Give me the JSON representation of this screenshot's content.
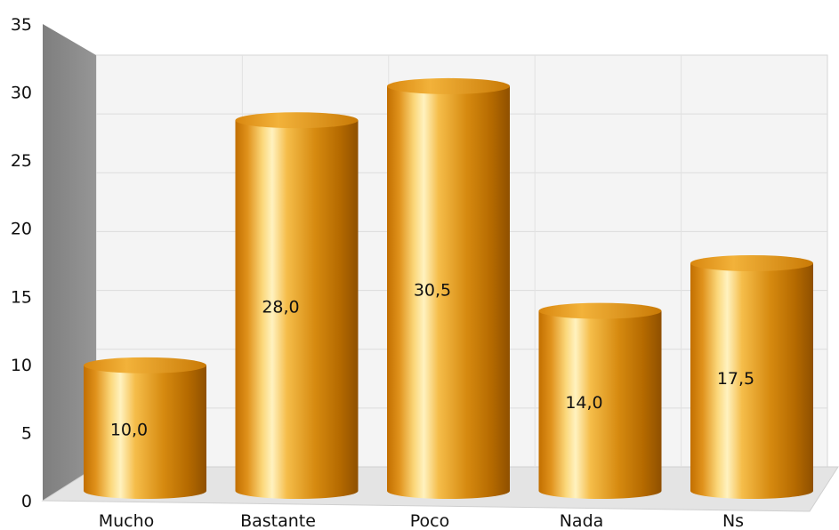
{
  "chart_data": {
    "type": "bar",
    "categories": [
      "Mucho",
      "Bastante",
      "Poco",
      "Nada",
      "Ns"
    ],
    "values": [
      10.0,
      28.0,
      30.5,
      14.0,
      17.5
    ],
    "data_labels": [
      "10,0",
      "28,0",
      "30,5",
      "14,0",
      "17,5"
    ],
    "ylim": [
      0,
      35
    ],
    "yticks": [
      "0",
      "5",
      "10",
      "15",
      "20",
      "25",
      "30",
      "35"
    ],
    "grid": true,
    "style": "3d-cylinder",
    "bar_color": "#d98a10",
    "wall_color": "#8c8c8c"
  }
}
